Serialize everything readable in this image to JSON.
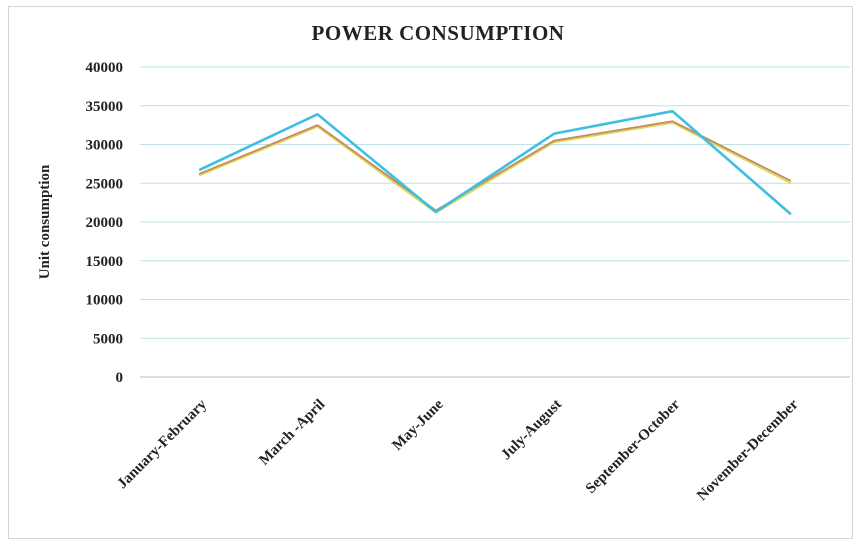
{
  "chart_data": {
    "type": "line",
    "title": "POWER CONSUMPTION",
    "xlabel": "",
    "ylabel": "Unit consumption",
    "categories": [
      "January-February",
      "March -April",
      "May-June",
      "July-August",
      "September-October",
      "November-December"
    ],
    "series": [
      {
        "color": "#3fbfe0",
        "values": [
          26700,
          33900,
          21300,
          31400,
          34300,
          21000
        ]
      },
      {
        "color": "#c98a5a",
        "values": [
          26200,
          32500,
          21500,
          30500,
          33000,
          25300
        ]
      },
      {
        "color": "#d6d85a",
        "values": [
          26000,
          32300,
          21200,
          30300,
          32800,
          25000
        ]
      }
    ],
    "ylim": [
      0,
      40000
    ],
    "yticks": [
      "0",
      "5000",
      "10000",
      "15000",
      "20000",
      "25000",
      "30000",
      "35000",
      "40000"
    ],
    "grid": true,
    "legend": "none"
  }
}
